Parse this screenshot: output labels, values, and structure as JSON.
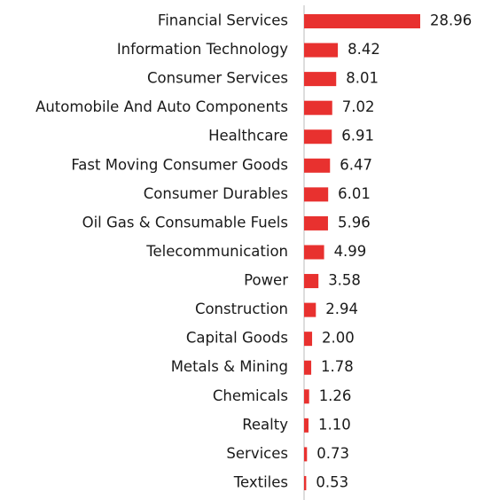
{
  "chart_data": {
    "type": "hbar",
    "categories": [
      "Financial Services",
      "Information Technology",
      "Consumer Services",
      "Automobile And Auto Components",
      "Healthcare",
      "Fast Moving Consumer Goods",
      "Consumer Durables",
      "Oil Gas & Consumable Fuels",
      "Telecommunication",
      "Power",
      "Construction",
      "Capital Goods",
      "Metals & Mining",
      "Chemicals",
      "Realty",
      "Services",
      "Textiles"
    ],
    "values": [
      28.96,
      8.42,
      8.01,
      7.02,
      6.91,
      6.47,
      6.01,
      5.96,
      4.99,
      3.58,
      2.94,
      2.0,
      1.78,
      1.26,
      1.1,
      0.73,
      0.53
    ],
    "value_labels": [
      "28.96",
      "8.42",
      "8.01",
      "7.02",
      "6.91",
      "6.47",
      "6.01",
      "5.96",
      "4.99",
      "3.58",
      "2.94",
      "2.00",
      "1.78",
      "1.26",
      "1.10",
      "0.73",
      "0.53"
    ],
    "color": "#e8312f"
  }
}
